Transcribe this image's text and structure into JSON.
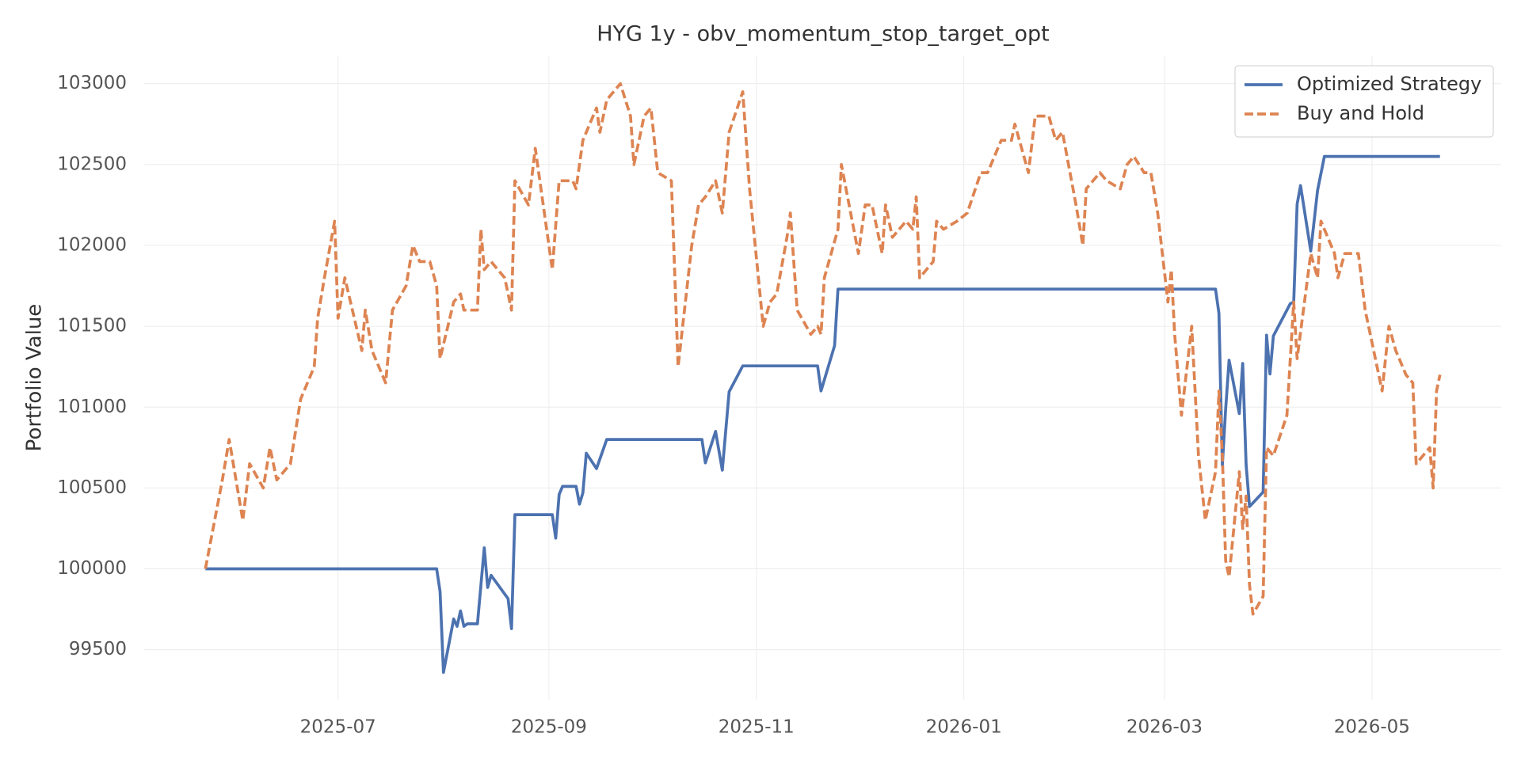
{
  "chart_data": {
    "type": "line",
    "title": "HYG 1y - obv_momentum_stop_target_opt",
    "y_label": "Portfolio Value",
    "xlim": [
      "2025-05-05",
      "2026-06-08"
    ],
    "xticks": [
      "2025-07",
      "2025-09",
      "2025-11",
      "2026-01",
      "2026-03",
      "2026-05"
    ],
    "ylim": [
      99190,
      103170
    ],
    "yticks": [
      99500,
      100000,
      100500,
      101000,
      101500,
      102000,
      102500,
      103000
    ],
    "grid": true,
    "legend": "upper right",
    "series": [
      {
        "name": "Optimized Strategy",
        "color": "#4c72b0",
        "style": "solid",
        "x": [
          "2025-05-23",
          "2025-07-30",
          "2025-07-31",
          "2025-08-01",
          "2025-08-04",
          "2025-08-05",
          "2025-08-06",
          "2025-08-07",
          "2025-08-08",
          "2025-08-11",
          "2025-08-13",
          "2025-08-14",
          "2025-08-15",
          "2025-08-20",
          "2025-08-21",
          "2025-08-22",
          "2025-09-02",
          "2025-09-03",
          "2025-09-04",
          "2025-09-05",
          "2025-09-09",
          "2025-09-10",
          "2025-09-11",
          "2025-09-12",
          "2025-09-15",
          "2025-09-18",
          "2025-10-16",
          "2025-10-17",
          "2025-10-20",
          "2025-10-22",
          "2025-10-24",
          "2025-10-28",
          "2025-11-19",
          "2025-11-20",
          "2025-11-24",
          "2025-11-25",
          "2026-03-16",
          "2026-03-17",
          "2026-03-18",
          "2026-03-19",
          "2026-03-20",
          "2026-03-23",
          "2026-03-24",
          "2026-03-25",
          "2026-03-26",
          "2026-03-30",
          "2026-03-31",
          "2026-04-01",
          "2026-04-02",
          "2026-04-07",
          "2026-04-08",
          "2026-04-09",
          "2026-04-10",
          "2026-04-13",
          "2026-04-15",
          "2026-04-17",
          "2026-05-21"
        ],
        "values": [
          100000,
          100000,
          99860,
          99360,
          99690,
          99645,
          99740,
          99645,
          99660,
          99660,
          100130,
          99885,
          99960,
          99815,
          99630,
          100335,
          100335,
          100190,
          100460,
          100510,
          100510,
          100400,
          100470,
          100715,
          100620,
          100800,
          100800,
          100655,
          100850,
          100610,
          101095,
          101255,
          101255,
          101100,
          101380,
          101730,
          101730,
          101580,
          100640,
          100990,
          101290,
          100960,
          101270,
          100645,
          100385,
          100475,
          101445,
          101205,
          101440,
          101640,
          101650,
          102255,
          102370,
          101965,
          102340,
          102550,
          102550
        ]
      },
      {
        "name": "Buy and Hold",
        "color": "#dd8452",
        "style": "dashed",
        "x": [
          "2025-05-23",
          "2025-05-28",
          "2025-05-30",
          "2025-06-03",
          "2025-06-05",
          "2025-06-09",
          "2025-06-11",
          "2025-06-13",
          "2025-06-17",
          "2025-06-20",
          "2025-06-24",
          "2025-06-25",
          "2025-06-27",
          "2025-06-30",
          "2025-07-01",
          "2025-07-03",
          "2025-07-08",
          "2025-07-09",
          "2025-07-11",
          "2025-07-15",
          "2025-07-17",
          "2025-07-21",
          "2025-07-23",
          "2025-07-25",
          "2025-07-28",
          "2025-07-30",
          "2025-07-31",
          "2025-08-04",
          "2025-08-06",
          "2025-08-07",
          "2025-08-11",
          "2025-08-12",
          "2025-08-13",
          "2025-08-15",
          "2025-08-19",
          "2025-08-21",
          "2025-08-22",
          "2025-08-26",
          "2025-08-28",
          "2025-09-02",
          "2025-09-04",
          "2025-09-08",
          "2025-09-09",
          "2025-09-11",
          "2025-09-15",
          "2025-09-16",
          "2025-09-18",
          "2025-09-22",
          "2025-09-25",
          "2025-09-26",
          "2025-09-29",
          "2025-10-01",
          "2025-10-03",
          "2025-10-07",
          "2025-10-09",
          "2025-10-13",
          "2025-10-15",
          "2025-10-17",
          "2025-10-20",
          "2025-10-22",
          "2025-10-24",
          "2025-10-28",
          "2025-10-30",
          "2025-11-03",
          "2025-11-05",
          "2025-11-07",
          "2025-11-10",
          "2025-11-11",
          "2025-11-13",
          "2025-11-17",
          "2025-11-19",
          "2025-11-20",
          "2025-11-21",
          "2025-11-25",
          "2025-11-26",
          "2025-12-01",
          "2025-12-03",
          "2025-12-05",
          "2025-12-08",
          "2025-12-09",
          "2025-12-11",
          "2025-12-15",
          "2025-12-17",
          "2025-12-18",
          "2025-12-19",
          "2025-12-23",
          "2025-12-24",
          "2025-12-26",
          "2025-12-30",
          "2026-01-02",
          "2026-01-06",
          "2026-01-08",
          "2026-01-12",
          "2026-01-15",
          "2026-01-16",
          "2026-01-20",
          "2026-01-22",
          "2026-01-26",
          "2026-01-28",
          "2026-01-30",
          "2026-02-03",
          "2026-02-05",
          "2026-02-06",
          "2026-02-10",
          "2026-02-12",
          "2026-02-16",
          "2026-02-18",
          "2026-02-20",
          "2026-02-23",
          "2026-02-25",
          "2026-02-27",
          "2026-03-02",
          "2026-03-03",
          "2026-03-04",
          "2026-03-06",
          "2026-03-09",
          "2026-03-11",
          "2026-03-13",
          "2026-03-16",
          "2026-03-17",
          "2026-03-18",
          "2026-03-19",
          "2026-03-20",
          "2026-03-23",
          "2026-03-24",
          "2026-03-25",
          "2026-03-26",
          "2026-03-27",
          "2026-03-30",
          "2026-03-31",
          "2026-04-02",
          "2026-04-06",
          "2026-04-08",
          "2026-04-09",
          "2026-04-13",
          "2026-04-15",
          "2026-04-16",
          "2026-04-20",
          "2026-04-21",
          "2026-04-23",
          "2026-04-27",
          "2026-04-29",
          "2026-05-01",
          "2026-05-04",
          "2026-05-06",
          "2026-05-08",
          "2026-05-11",
          "2026-05-13",
          "2026-05-14",
          "2026-05-18",
          "2026-05-19",
          "2026-05-20",
          "2026-05-21"
        ],
        "values": [
          100000,
          100550,
          100800,
          100300,
          100650,
          100500,
          100750,
          100550,
          100650,
          101050,
          101250,
          101550,
          101800,
          102150,
          101550,
          101800,
          101350,
          101600,
          101350,
          101150,
          101600,
          101750,
          102000,
          101900,
          101900,
          101750,
          101300,
          101650,
          101700,
          101600,
          101600,
          102100,
          101850,
          101900,
          101800,
          101600,
          102400,
          102250,
          102600,
          101850,
          102400,
          102400,
          102350,
          102650,
          102850,
          102700,
          102900,
          103000,
          102800,
          102500,
          102800,
          102850,
          102450,
          102400,
          101250,
          102000,
          102250,
          102300,
          102400,
          102200,
          102700,
          102950,
          102350,
          101500,
          101650,
          101700,
          102050,
          102200,
          101600,
          101450,
          101500,
          101450,
          101800,
          102100,
          102500,
          101950,
          102250,
          102250,
          101950,
          102250,
          102050,
          102150,
          102100,
          102300,
          101800,
          101900,
          102150,
          102100,
          102150,
          102200,
          102450,
          102450,
          102650,
          102650,
          102750,
          102450,
          102800,
          102800,
          102650,
          102700,
          102250,
          102000,
          102350,
          102450,
          102400,
          102350,
          102500,
          102550,
          102450,
          102450,
          102200,
          101650,
          101850,
          101450,
          100950,
          101500,
          100700,
          100300,
          100600,
          101100,
          100700,
          100050,
          99950,
          100600,
          100250,
          100450,
          99900,
          99720,
          99830,
          100750,
          100700,
          100950,
          101650,
          101300,
          101950,
          101800,
          102150,
          101950,
          101800,
          101950,
          101950,
          101600,
          101400,
          101100,
          101500,
          101350,
          101200,
          101150,
          100650,
          100750,
          100500,
          101100,
          101200
        ]
      }
    ]
  }
}
